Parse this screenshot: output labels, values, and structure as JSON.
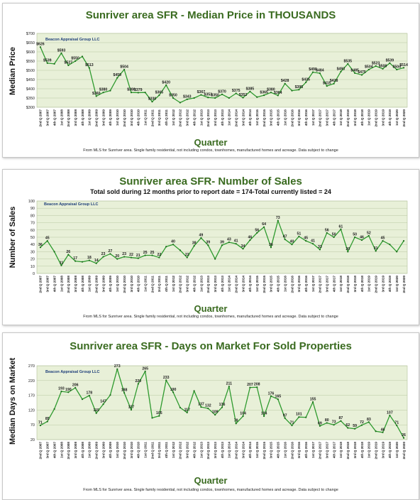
{
  "chart_data": [
    {
      "type": "line",
      "title": "Sunriver area SFR - Median Price in THOUSANDS",
      "ylabel": "Median Price",
      "xlabel": "Quarter",
      "watermark": "Beacon Appraisal Group LLC",
      "footnote": "From MLS for Sunriver area. Single family residential, not including condos, townhomes, manufactured homes and acreage.  Data subject to change",
      "ylim": [
        300,
        700
      ],
      "yticks": [
        "$300",
        "$350",
        "$400",
        "$450",
        "$500",
        "$550",
        "$600",
        "$650",
        "$700"
      ],
      "color": "#2e9a2e",
      "categories": [
        "2nd Q 2007",
        "3rd Q 2007",
        "4th Q 2007",
        "1st Q 2008",
        "2nd Q 2008",
        "3rd Q 2008",
        "4th Q 2008",
        "1st Q 2009",
        "2nd Q 2009",
        "3rd Q 2009",
        "4th Q 2009",
        "1st Q 2010",
        "2nd Q 2010",
        "3rd Q 2010",
        "4th Q 2010",
        "1st Q 2011",
        "2nd Q 2011",
        "3rd Q 2011",
        "4th Q 2011",
        "1st Q 2012",
        "2nd Q 2012",
        "3rd Q 2012",
        "4th Q 2012",
        "1st Q 2013",
        "2nd Q 2013",
        "3rd Q 2013",
        "4th Q 2013",
        "1st Q 2014",
        "2nd Q 2014",
        "3rd Q 2014",
        "4th Q 2014",
        "1st Q 2015",
        "2nd Q 2015",
        "3rd Q 2015",
        "4th Q 2015",
        "1st Q 2016",
        "2nd Q 2016",
        "3rd Q 2016",
        "4th Q 2016",
        "1st Q 2017",
        "2nd Q 2017",
        "3rd Q 2017",
        "4th Q 2017",
        "1st Q 2018",
        "2nd Q 2018",
        "3rd Q 2018",
        "4th Q 2018",
        "1st Q 2019",
        "2nd Q 2019",
        "3rd Q 2019",
        "4th Q 2019",
        "1st Q 2020",
        "2nd Q 2020"
      ],
      "values": [
        626,
        539,
        535,
        593,
        527,
        550,
        575,
        513,
        360,
        380,
        390,
        459,
        504,
        380,
        379,
        380,
        330,
        365,
        420,
        350,
        325,
        343,
        350,
        367,
        353,
        350,
        370,
        350,
        375,
        352,
        385,
        355,
        365,
        380,
        364,
        428,
        390,
        395,
        435,
        490,
        484,
        415,
        428,
        493,
        535,
        485,
        475,
        504,
        523,
        508,
        539,
        504,
        514
      ],
      "labels": [
        "$626",
        "$539",
        "",
        "$593",
        "$527",
        "$550",
        "",
        "$513",
        "$360",
        "$380",
        "",
        "$459",
        "$504",
        "$380",
        "$379",
        "",
        "$330",
        "$365",
        "$420",
        "$350",
        "",
        "$343",
        "",
        "$367",
        "$353",
        "$350",
        "$370",
        "",
        "$375",
        "$352",
        "$385",
        "",
        "$365",
        "$380",
        "$364",
        "$428",
        "",
        "$395",
        "$435",
        "$490",
        "$484",
        "$415",
        "$428",
        "$493",
        "$535",
        "$485",
        "$475",
        "$504",
        "$523",
        "$508",
        "$539",
        "$504",
        "$514"
      ]
    },
    {
      "type": "line",
      "title": "Sunriver area SFR- Number of Sales",
      "subtitle": "Total sold during 12 months prior to report date = 174-Total currently listed = 24",
      "ylabel": "Number of Sales",
      "xlabel": "Quarter",
      "watermark": "Beacon Appraisal Group LLC",
      "footnote": "From MLS for Sunriver area. Single family residential, not including condos, townhomes, manufactured homes and acreage.  Data subject to change",
      "ylim": [
        0,
        100
      ],
      "yticks": [
        "0",
        "10",
        "20",
        "30",
        "40",
        "50",
        "60",
        "70",
        "80",
        "90",
        "100"
      ],
      "color": "#2e9a2e",
      "categories": [
        "2nd Q 2007",
        "3rd Q 2007",
        "4th Q 2007",
        "1st Q 2008",
        "2nd Q 2008",
        "3rd Q 2008",
        "4th Q 2008",
        "1st Q 2009",
        "2nd Q 2009",
        "3rd Q 2009",
        "4th Q 2009",
        "1st Q 2010",
        "2nd Q 2010",
        "3rd Q 2010",
        "4th Q 2010",
        "1st Q 2011",
        "2nd Q 2011",
        "3rd Q 2011",
        "4th Q 2011",
        "1st Q 2012",
        "2nd Q 2012",
        "3rd Q 2012",
        "4th Q 2012",
        "1st Q 2013",
        "2nd Q 2013",
        "3rd Q 2013",
        "4th Q 2013",
        "1st Q 2014",
        "2nd Q 2014",
        "3rd Q 2014",
        "4th Q 2014",
        "1st Q 2015",
        "2nd Q 2015",
        "3rd Q 2015",
        "4th Q 2015",
        "1st Q 2016",
        "2nd Q 2016",
        "3rd Q 2016",
        "4th Q 2016",
        "1st Q 2017",
        "2nd Q 2017",
        "3rd Q 2017",
        "4th Q 2017",
        "1st Q 2018",
        "2nd Q 2018",
        "3rd Q 2018",
        "4th Q 2018",
        "1st Q 2019",
        "2nd Q 2019",
        "3rd Q 2019",
        "4th Q 2019",
        "1st Q 2020",
        "2nd Q 2020"
      ],
      "values": [
        36,
        45,
        30,
        11,
        26,
        17,
        16,
        18,
        14,
        23,
        27,
        20,
        23,
        22,
        21,
        25,
        25,
        22,
        37,
        40,
        32,
        22,
        38,
        49,
        39,
        20,
        39,
        43,
        41,
        34,
        46,
        56,
        64,
        36,
        73,
        47,
        40,
        51,
        45,
        41,
        33,
        56,
        50,
        61,
        30,
        50,
        46,
        52,
        31,
        45,
        40,
        30,
        45
      ],
      "labels": [
        "36",
        "45",
        "",
        "11",
        "26",
        "17",
        "",
        "18",
        "14",
        "23",
        "27",
        "20",
        "23",
        "22",
        "21",
        "25",
        "25",
        "22",
        "",
        "40",
        "",
        "22",
        "38",
        "49",
        "39",
        "",
        "39",
        "43",
        "41",
        "34",
        "46",
        "56",
        "64",
        "36",
        "73",
        "47",
        "40",
        "51",
        "45",
        "41",
        "33",
        "56",
        "50",
        "61",
        "30",
        "50",
        "46",
        "52",
        "31",
        "45",
        "",
        "",
        ""
      ]
    },
    {
      "type": "line",
      "title": "Sunriver area SFR - Days on Market For Sold Properties",
      "ylabel": "Median Days on Market",
      "xlabel": "Quarter",
      "watermark": "Beacon Appraisal Group LLC",
      "footnote": "From MLS for Sunriver area. Single family residential, not including condos, townhomes, manufactured homes and acreage.  Data subject to change",
      "ylim": [
        20,
        285
      ],
      "yticks": [
        "20",
        "70",
        "120",
        "170",
        "220",
        "270"
      ],
      "color": "#2e9a2e",
      "categories": [
        "2nd Q 2007",
        "3rd Q 2007",
        "4th Q 2007",
        "1st Q 2008",
        "2nd Q 2008",
        "3rd Q 2008",
        "4th Q 2008",
        "1st Q 2009",
        "2nd Q 2009",
        "3rd Q 2009",
        "4th Q 2009",
        "1st Q 2010",
        "2nd Q 2010",
        "3rd Q 2010",
        "4th Q 2010",
        "1st Q 2011",
        "2nd Q 2011",
        "3rd Q 2011",
        "4th Q 2011",
        "1st Q 2012",
        "2nd Q 2012",
        "3rd Q 2012",
        "4th Q 2012",
        "1st Q 2013",
        "2nd Q 2013",
        "3rd Q 2013",
        "4th Q 2013",
        "1st Q 2014",
        "2nd Q 2014",
        "3rd Q 2014",
        "4th Q 2014",
        "1st Q 2015",
        "2nd Q 2015",
        "3rd Q 2015",
        "4th Q 2015",
        "1st Q 2016",
        "2nd Q 2016",
        "3rd Q 2016",
        "4th Q 2016",
        "1st Q 2017",
        "2nd Q 2017",
        "3rd Q 2017",
        "4th Q 2017",
        "1st Q 2018",
        "2nd Q 2018",
        "3rd Q 2018",
        "4th Q 2018",
        "1st Q 2019",
        "2nd Q 2019",
        "3rd Q 2019",
        "4th Q 2019",
        "1st Q 2020",
        "2nd Q 2020"
      ],
      "values": [
        71,
        85,
        130,
        193,
        190,
        206,
        165,
        178,
        115,
        147,
        180,
        273,
        188,
        127,
        220,
        265,
        98,
        105,
        233,
        190,
        135,
        117,
        195,
        137,
        132,
        109,
        136,
        211,
        78,
        104,
        207,
        208,
        104,
        176,
        165,
        97,
        71,
        101,
        100,
        155,
        69,
        80,
        73,
        87,
        62,
        59,
        72,
        83,
        50,
        46,
        107,
        71,
        26
      ],
      "labels": [
        "71",
        "85",
        "",
        "193",
        "190",
        "206",
        "",
        "178",
        "115",
        "147",
        "",
        "273",
        "188",
        "127",
        "220",
        "265",
        "",
        "105",
        "233",
        "190",
        "",
        "117",
        "",
        "137",
        "132",
        "109",
        "136",
        "211",
        "78",
        "104",
        "207",
        "208",
        "104",
        "176",
        "165",
        "97",
        "71",
        "101",
        "",
        "155",
        "69",
        "80",
        "73",
        "87",
        "62",
        "59",
        "72",
        "83",
        "",
        "46",
        "107",
        "71",
        "26"
      ]
    }
  ]
}
